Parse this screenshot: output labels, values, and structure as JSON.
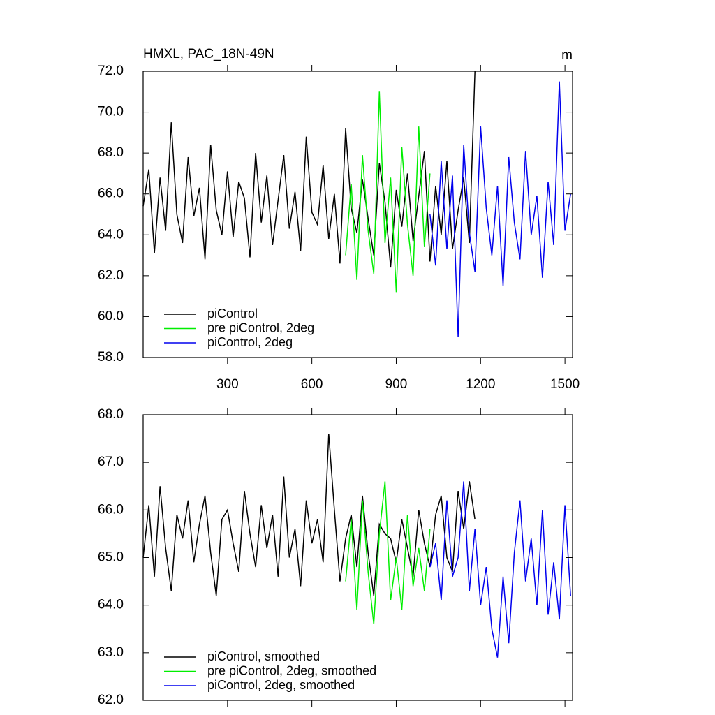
{
  "chart_data": [
    {
      "type": "line",
      "title": "HMXL, PAC_18N-49N",
      "annotation": "m",
      "x": [
        0,
        20,
        40,
        60,
        80,
        100,
        120,
        140,
        160,
        180,
        200,
        220,
        240,
        260,
        280,
        300,
        320,
        340,
        360,
        380,
        400,
        420,
        440,
        460,
        480,
        500,
        520,
        540,
        560,
        580,
        600,
        620,
        640,
        660,
        680,
        700,
        720,
        740,
        760,
        780,
        800,
        820,
        840,
        860,
        880,
        900,
        920,
        940,
        960,
        980,
        1000,
        1020,
        1040,
        1060,
        1080,
        1100,
        1120,
        1140,
        1160,
        1180,
        1200,
        1220,
        1240,
        1260,
        1280,
        1300,
        1320,
        1340,
        1360,
        1380,
        1400,
        1420,
        1440,
        1460,
        1480,
        1500,
        1520
      ],
      "series": [
        {
          "name": "piControl",
          "color": "#000000",
          "values": [
            65.4,
            67.2,
            63.1,
            66.8,
            64.2,
            69.5,
            65.0,
            63.6,
            67.8,
            64.9,
            66.3,
            62.8,
            68.4,
            65.2,
            64.0,
            67.1,
            63.9,
            66.6,
            65.8,
            62.9,
            68.0,
            64.6,
            66.9,
            63.5,
            65.7,
            67.9,
            64.3,
            66.1,
            63.2,
            68.8,
            65.1,
            64.5,
            67.4,
            63.8,
            66.0,
            62.6,
            69.2,
            65.3,
            64.1,
            66.7,
            64.8,
            63.0,
            67.5,
            65.6,
            62.4,
            66.2,
            64.4,
            67.0,
            63.7,
            65.9,
            68.1,
            62.7,
            66.4,
            64.0,
            67.6,
            63.3,
            65.2,
            66.8,
            63.6,
            72.0,
            null,
            null,
            null,
            null,
            null,
            null,
            null,
            null,
            null,
            null,
            null,
            null,
            null,
            null,
            null,
            null,
            null
          ]
        },
        {
          "name": "pre piControl, 2deg",
          "color": "#00ee00",
          "values": [
            null,
            null,
            null,
            null,
            null,
            null,
            null,
            null,
            null,
            null,
            null,
            null,
            null,
            null,
            null,
            null,
            null,
            null,
            null,
            null,
            null,
            null,
            null,
            null,
            null,
            null,
            null,
            null,
            null,
            null,
            null,
            null,
            null,
            null,
            null,
            null,
            63.0,
            66.5,
            61.8,
            67.9,
            64.2,
            62.1,
            71.0,
            63.6,
            66.8,
            61.2,
            68.3,
            64.5,
            62.0,
            69.3,
            63.4,
            67.0,
            null,
            null,
            null,
            null,
            null,
            null,
            null,
            null,
            null,
            null,
            null,
            null,
            null,
            null,
            null,
            null,
            null,
            null,
            null,
            null,
            null,
            null,
            null,
            null,
            null
          ]
        },
        {
          "name": "piControl, 2deg",
          "color": "#0000ee",
          "values": [
            null,
            null,
            null,
            null,
            null,
            null,
            null,
            null,
            null,
            null,
            null,
            null,
            null,
            null,
            null,
            null,
            null,
            null,
            null,
            null,
            null,
            null,
            null,
            null,
            null,
            null,
            null,
            null,
            null,
            null,
            null,
            null,
            null,
            null,
            null,
            null,
            null,
            null,
            null,
            null,
            null,
            null,
            null,
            null,
            null,
            null,
            null,
            null,
            null,
            null,
            null,
            65.0,
            62.5,
            67.6,
            63.3,
            66.9,
            59.0,
            68.4,
            64.1,
            62.2,
            69.3,
            65.3,
            63.0,
            66.4,
            61.5,
            67.8,
            64.6,
            62.8,
            68.1,
            64.0,
            65.9,
            61.9,
            66.6,
            63.5,
            71.5,
            64.2,
            66.0
          ]
        }
      ],
      "xlim": [
        0,
        1527
      ],
      "xticks": [
        300,
        600,
        900,
        1200,
        1500
      ],
      "show_xtick_labels": true,
      "ylim": [
        58,
        72
      ],
      "yticks": [
        {
          "value": 58,
          "label": "58.0"
        },
        {
          "value": 60,
          "label": "60.0"
        },
        {
          "value": 62,
          "label": "62.0"
        },
        {
          "value": 64,
          "label": "64.0"
        },
        {
          "value": 66,
          "label": "66.0"
        },
        {
          "value": 68,
          "label": "68.0"
        },
        {
          "value": 70,
          "label": "70.0"
        },
        {
          "value": 72,
          "label": "72.0"
        }
      ],
      "legend": "lower left"
    },
    {
      "type": "line",
      "x": [
        0,
        20,
        40,
        60,
        80,
        100,
        120,
        140,
        160,
        180,
        200,
        220,
        240,
        260,
        280,
        300,
        320,
        340,
        360,
        380,
        400,
        420,
        440,
        460,
        480,
        500,
        520,
        540,
        560,
        580,
        600,
        620,
        640,
        660,
        680,
        700,
        720,
        740,
        760,
        780,
        800,
        820,
        840,
        860,
        880,
        900,
        920,
        940,
        960,
        980,
        1000,
        1020,
        1040,
        1060,
        1080,
        1100,
        1120,
        1140,
        1160,
        1180,
        1200,
        1220,
        1240,
        1260,
        1280,
        1300,
        1320,
        1340,
        1360,
        1380,
        1400,
        1420,
        1440,
        1460,
        1480,
        1500,
        1520
      ],
      "series": [
        {
          "name": "piControl, smoothed",
          "color": "#000000",
          "values": [
            65.0,
            66.1,
            64.6,
            66.5,
            65.2,
            64.3,
            65.9,
            65.4,
            66.2,
            64.9,
            65.7,
            66.3,
            65.1,
            64.2,
            65.8,
            66.0,
            65.3,
            64.7,
            66.4,
            65.5,
            64.8,
            66.1,
            65.2,
            65.9,
            64.6,
            66.7,
            65.0,
            65.6,
            64.4,
            66.2,
            65.3,
            65.8,
            64.9,
            67.6,
            66.0,
            64.5,
            65.4,
            65.9,
            64.8,
            66.3,
            65.1,
            64.2,
            65.7,
            65.5,
            65.4,
            64.9,
            65.8,
            65.2,
            64.6,
            66.0,
            65.3,
            64.8,
            65.9,
            66.3,
            65.0,
            64.7,
            66.4,
            65.6,
            66.6,
            65.8,
            null,
            null,
            null,
            null,
            null,
            null,
            null,
            null,
            null,
            null,
            null,
            null,
            null,
            null,
            null,
            null,
            null
          ]
        },
        {
          "name": "pre piControl, 2deg, smoothed",
          "color": "#00ee00",
          "values": [
            null,
            null,
            null,
            null,
            null,
            null,
            null,
            null,
            null,
            null,
            null,
            null,
            null,
            null,
            null,
            null,
            null,
            null,
            null,
            null,
            null,
            null,
            null,
            null,
            null,
            null,
            null,
            null,
            null,
            null,
            null,
            null,
            null,
            null,
            null,
            null,
            64.5,
            65.8,
            63.9,
            66.2,
            64.7,
            63.6,
            65.5,
            66.6,
            64.1,
            65.0,
            63.9,
            65.9,
            64.4,
            65.2,
            64.3,
            65.6,
            null,
            null,
            null,
            null,
            null,
            null,
            null,
            null,
            null,
            null,
            null,
            null,
            null,
            null,
            null,
            null,
            null,
            null,
            null,
            null,
            null,
            null,
            null,
            null,
            null
          ]
        },
        {
          "name": "piControl, 2deg, smoothed",
          "color": "#0000ee",
          "values": [
            null,
            null,
            null,
            null,
            null,
            null,
            null,
            null,
            null,
            null,
            null,
            null,
            null,
            null,
            null,
            null,
            null,
            null,
            null,
            null,
            null,
            null,
            null,
            null,
            null,
            null,
            null,
            null,
            null,
            null,
            null,
            null,
            null,
            null,
            null,
            null,
            null,
            null,
            null,
            null,
            null,
            null,
            null,
            null,
            null,
            null,
            null,
            null,
            null,
            null,
            null,
            64.8,
            65.3,
            64.1,
            66.2,
            64.6,
            65.0,
            66.6,
            64.3,
            65.6,
            64.0,
            64.8,
            63.5,
            62.9,
            64.6,
            63.2,
            65.1,
            66.2,
            64.5,
            65.4,
            64.0,
            66.0,
            63.8,
            64.9,
            63.7,
            66.1,
            64.2
          ]
        }
      ],
      "xlim": [
        0,
        1527
      ],
      "xticks": [
        300,
        600,
        900,
        1200,
        1500
      ],
      "show_xtick_labels": false,
      "ylim": [
        62,
        68
      ],
      "yticks": [
        {
          "value": 62,
          "label": "62.0"
        },
        {
          "value": 63,
          "label": "63.0"
        },
        {
          "value": 64,
          "label": "64.0"
        },
        {
          "value": 65,
          "label": "65.0"
        },
        {
          "value": 66,
          "label": "66.0"
        },
        {
          "value": 67,
          "label": "67.0"
        },
        {
          "value": 68,
          "label": "68.0"
        }
      ],
      "legend": "lower left"
    }
  ]
}
